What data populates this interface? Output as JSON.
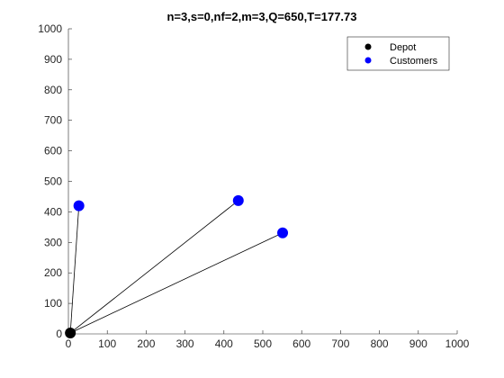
{
  "chart_data": {
    "type": "scatter",
    "title": "n=3,s=0,nf=2,m=3,Q=650,T=177.73",
    "xlabel": "",
    "ylabel": "",
    "xlim": [
      0,
      1000
    ],
    "ylim": [
      0,
      1000
    ],
    "xticks": [
      "0",
      "100",
      "200",
      "300",
      "400",
      "500",
      "600",
      "700",
      "800",
      "900",
      "1000"
    ],
    "yticks": [
      "0",
      "100",
      "200",
      "300",
      "400",
      "500",
      "600",
      "700",
      "800",
      "900",
      "1000"
    ],
    "grid": false,
    "legend_position": "top-right",
    "series": [
      {
        "name": "Depot",
        "color": "#000000",
        "points": [
          {
            "x": 5,
            "y": 3
          }
        ]
      },
      {
        "name": "Customers",
        "color": "#0000ff",
        "points": [
          {
            "x": 27,
            "y": 420
          },
          {
            "x": 437,
            "y": 437
          },
          {
            "x": 551,
            "y": 331
          }
        ]
      }
    ],
    "routes": [
      {
        "from": [
          5,
          3
        ],
        "to": [
          27,
          420
        ]
      },
      {
        "from": [
          5,
          3
        ],
        "to": [
          437,
          437
        ]
      },
      {
        "from": [
          5,
          3
        ],
        "to": [
          551,
          331
        ]
      }
    ]
  }
}
